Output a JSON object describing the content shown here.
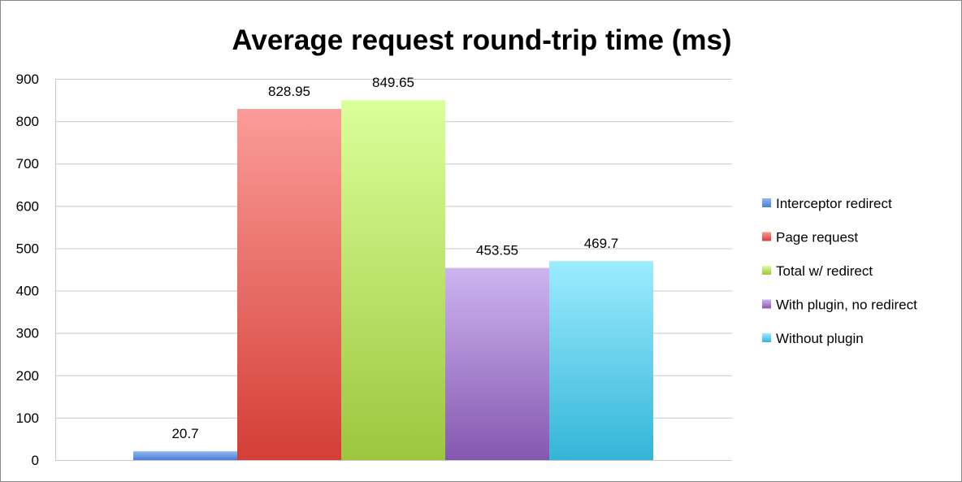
{
  "chart_data": {
    "type": "bar",
    "title": "Average request round-trip time (ms)",
    "xlabel": "",
    "ylabel": "",
    "ylim": [
      0,
      900
    ],
    "yticks": [
      0,
      100,
      200,
      300,
      400,
      500,
      600,
      700,
      800,
      900
    ],
    "grid": true,
    "legend_position": "right",
    "series": [
      {
        "name": "Interceptor redirect",
        "value": 20.7,
        "label": "20.7",
        "color_top": "#8fb6f0",
        "color_bottom": "#4a80d8",
        "icon": "blue-square"
      },
      {
        "name": "Page request",
        "value": 828.95,
        "label": "828.95",
        "color_top": "#fb9c98",
        "color_bottom": "#d43e36",
        "icon": "red-square"
      },
      {
        "name": "Total w/ redirect",
        "value": 849.65,
        "label": "849.65",
        "color_top": "#dbff9a",
        "color_bottom": "#9dc63e",
        "icon": "green-square"
      },
      {
        "name": "With plugin, no redirect",
        "value": 453.55,
        "label": "453.55",
        "color_top": "#cdb4f0",
        "color_bottom": "#8558b0",
        "icon": "purple-square"
      },
      {
        "name": "Without plugin",
        "value": 469.7,
        "label": "469.7",
        "color_top": "#9cecff",
        "color_bottom": "#34b5d8",
        "icon": "cyan-square"
      }
    ]
  }
}
